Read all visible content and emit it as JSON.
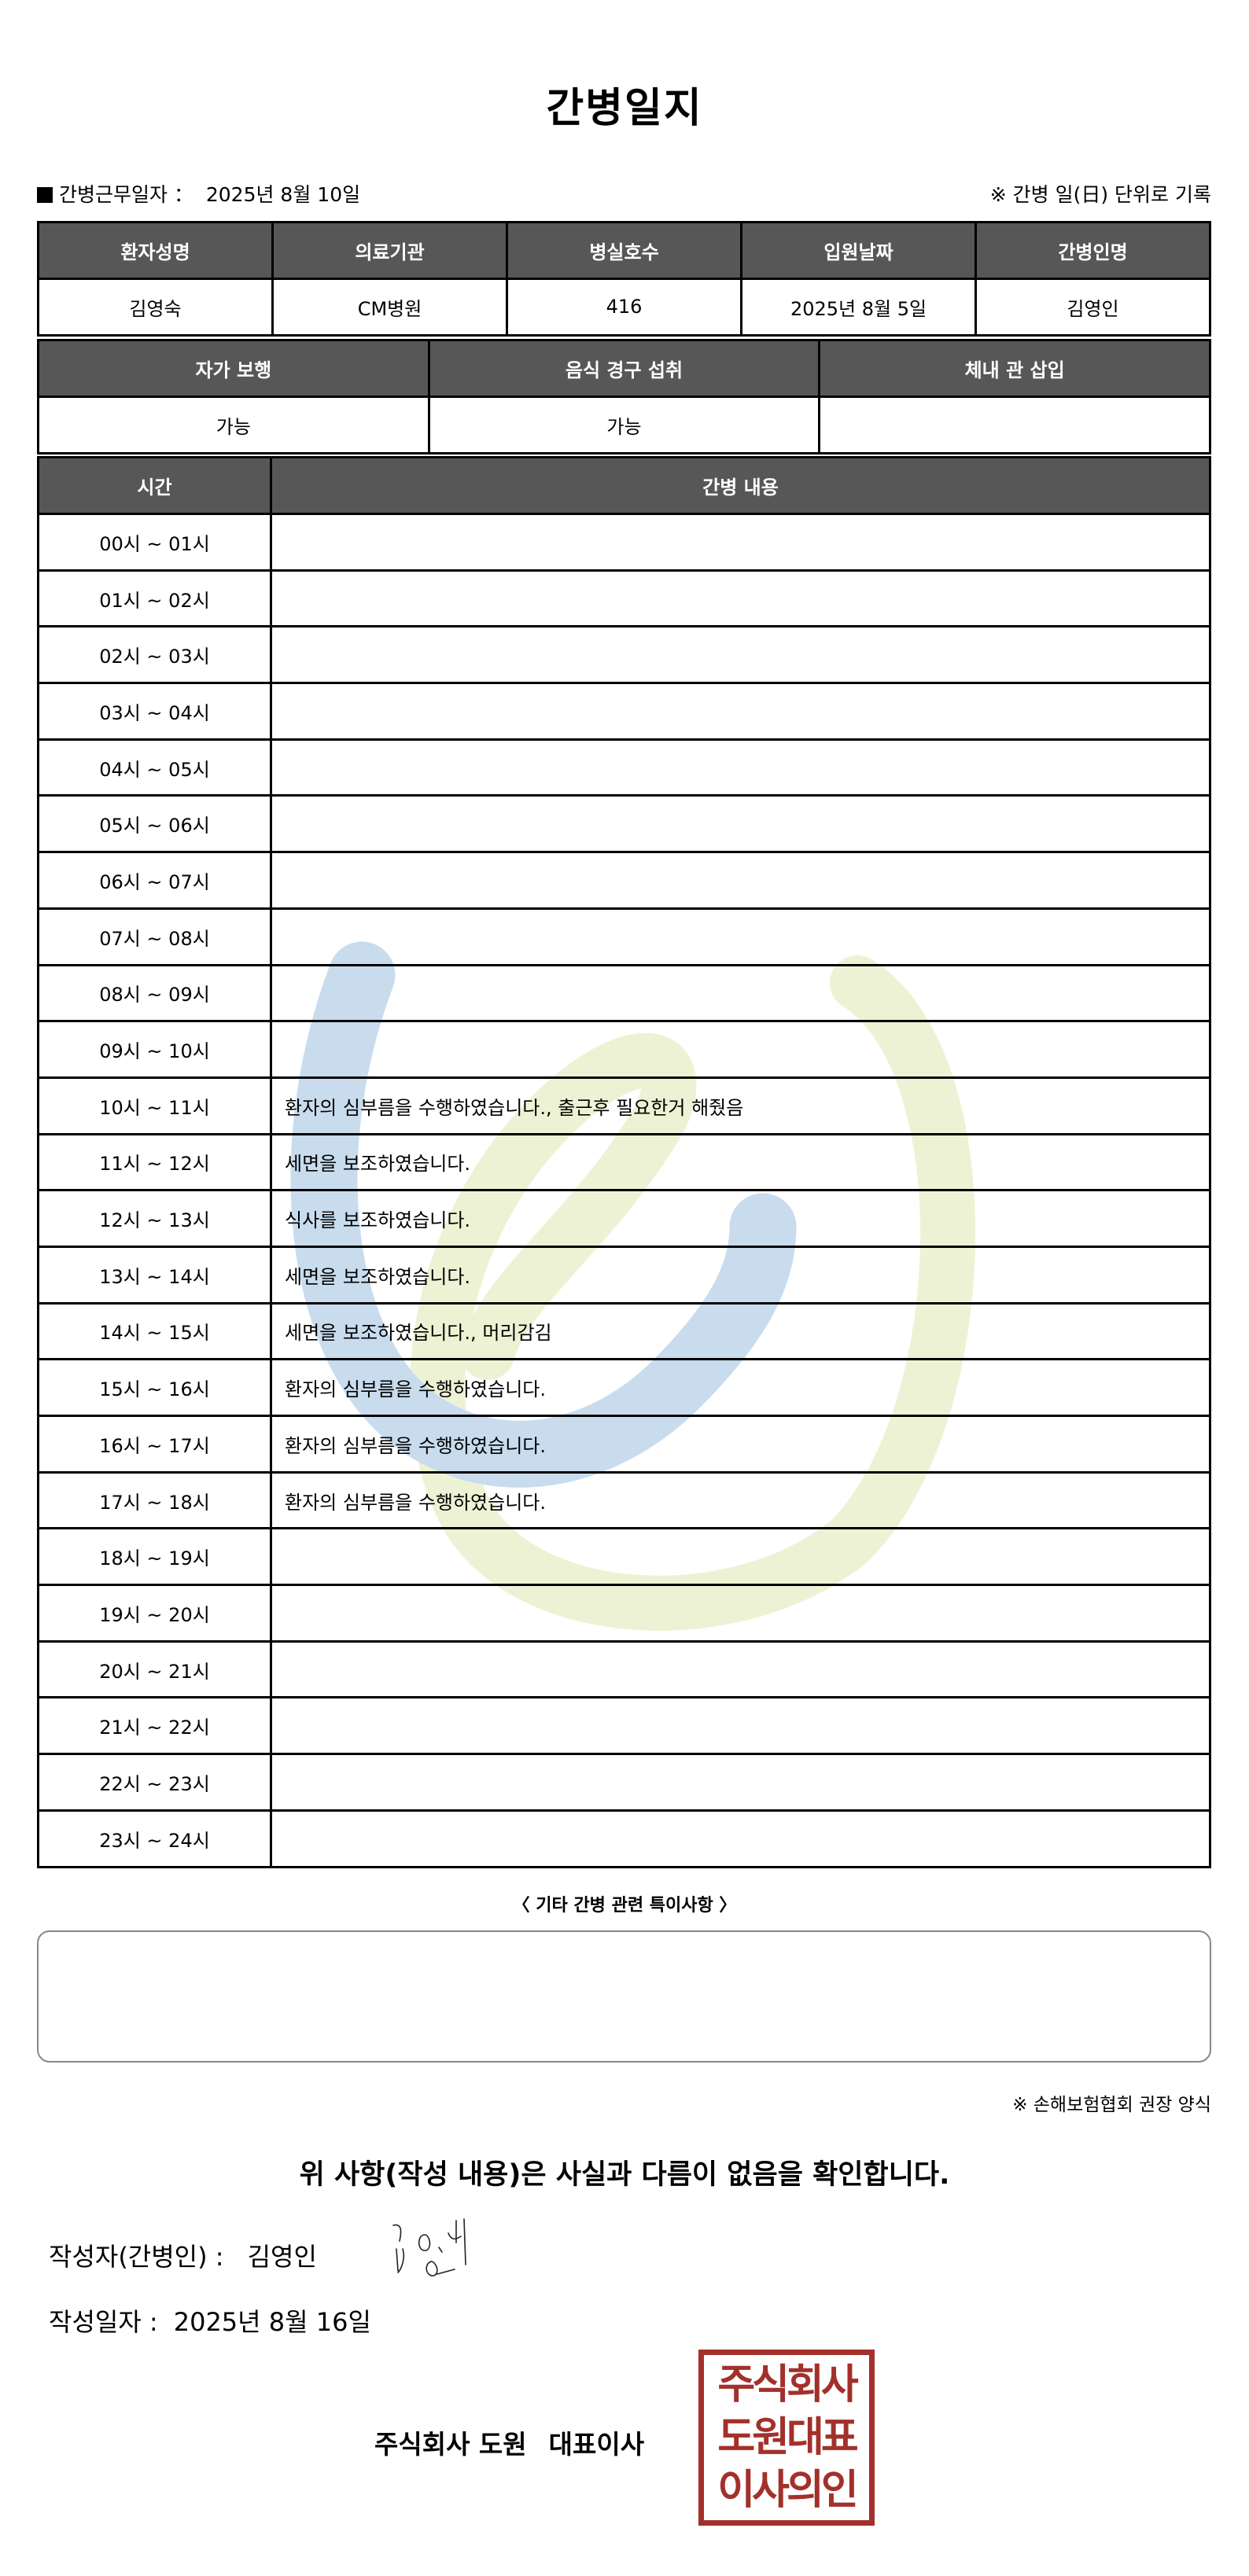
{
  "title": "간병일지",
  "meta": {
    "work_date_label": "간병근무일자 ：",
    "work_date": "2025년 8월 10일",
    "note": "※ 간병 일(日) 단위로 기록"
  },
  "patient_table": {
    "headers": [
      "환자성명",
      "의료기관",
      "병실호수",
      "입원날짜",
      "간병인명"
    ],
    "values": [
      "김영숙",
      "CM병원",
      "416",
      "2025년 8월 5일",
      "김영인"
    ]
  },
  "status_table": {
    "headers": [
      "자가 보행",
      "음식 경구 섭취",
      "체내 관 삽입"
    ],
    "values": [
      "가능",
      "가능",
      ""
    ]
  },
  "log_table": {
    "headers": [
      "시간",
      "간병 내용"
    ],
    "rows": [
      {
        "time": "00시 ~ 01시",
        "content": ""
      },
      {
        "time": "01시 ~ 02시",
        "content": ""
      },
      {
        "time": "02시 ~ 03시",
        "content": ""
      },
      {
        "time": "03시 ~ 04시",
        "content": ""
      },
      {
        "time": "04시 ~ 05시",
        "content": ""
      },
      {
        "time": "05시 ~ 06시",
        "content": ""
      },
      {
        "time": "06시 ~ 07시",
        "content": ""
      },
      {
        "time": "07시 ~ 08시",
        "content": ""
      },
      {
        "time": "08시 ~ 09시",
        "content": ""
      },
      {
        "time": "09시 ~ 10시",
        "content": ""
      },
      {
        "time": "10시 ~ 11시",
        "content": "환자의 심부름을 수행하였습니다., 출근후 필요한거 해줬음"
      },
      {
        "time": "11시 ~ 12시",
        "content": "세면을 보조하였습니다."
      },
      {
        "time": "12시 ~ 13시",
        "content": "식사를 보조하였습니다."
      },
      {
        "time": "13시 ~ 14시",
        "content": "세면을 보조하였습니다."
      },
      {
        "time": "14시 ~ 15시",
        "content": "세면을 보조하였습니다., 머리감김"
      },
      {
        "time": "15시 ~ 16시",
        "content": "환자의 심부름을 수행하였습니다."
      },
      {
        "time": "16시 ~ 17시",
        "content": "환자의 심부름을 수행하였습니다."
      },
      {
        "time": "17시 ~ 18시",
        "content": "환자의 심부름을 수행하였습니다."
      },
      {
        "time": "18시 ~ 19시",
        "content": ""
      },
      {
        "time": "19시 ~ 20시",
        "content": ""
      },
      {
        "time": "20시 ~ 21시",
        "content": ""
      },
      {
        "time": "21시 ~ 22시",
        "content": ""
      },
      {
        "time": "22시 ~ 23시",
        "content": ""
      },
      {
        "time": "23시 ~ 24시",
        "content": ""
      }
    ]
  },
  "notes": {
    "heading": "〈 기타 간병 관련 특이사항 〉",
    "value": ""
  },
  "footer_note": "※ 손해보험협회 권장 양식",
  "confirmation": "위 사항(작성 내용)은 사실과 다름이 없음을 확인합니다.",
  "author": {
    "label": "작성자(간병인) :",
    "name": "김영인",
    "signature": "김영인"
  },
  "written_date": {
    "label": "작성일자 :",
    "value": "2025년 8월 16일"
  },
  "company": {
    "name": "주식회사 도원",
    "title": "대표이사"
  },
  "seal": {
    "lines": [
      "주식회사",
      "도원대표",
      "이사의인"
    ],
    "color": "#a3302b"
  },
  "colors": {
    "header_bg": "#575757",
    "watermark_blue": "#c8dcee",
    "watermark_green": "#eef2d4"
  }
}
